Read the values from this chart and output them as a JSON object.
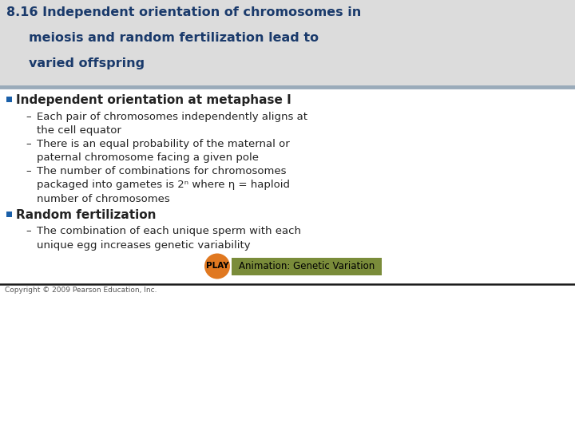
{
  "title_line1": "8.16 Independent orientation of chromosomes in",
  "title_line2": "meiosis and random fertilization lead to",
  "title_line3": "varied offspring",
  "title_color": "#1a3a6b",
  "title_bg_color": "#dcdcdc",
  "separator_color": "#9aabba",
  "bg_color": "#ffffff",
  "bullet_color": "#1a5fa8",
  "bullet1_text": "Independent orientation at metaphase I",
  "sub_bullets1": [
    "Each pair of chromosomes independently aligns at\nthe cell equator",
    "There is an equal probability of the maternal or\npaternal chromosome facing a given pole",
    "The number of combinations for chromosomes\npackaged into gametes is 2ⁿ where η = haploid\nnumber of chromosomes"
  ],
  "bullet2_text": "Random fertilization",
  "sub_bullets2": [
    "The combination of each unique sperm with each\nunique egg increases genetic variability"
  ],
  "play_circle_color": "#e07820",
  "play_text": "PLAY",
  "animation_box_color": "#7a8c3a",
  "animation_text": "Animation: Genetic Variation",
  "copyright_text": "Copyright © 2009 Pearson Education, Inc.",
  "bottom_line_color": "#1a1a1a",
  "text_color": "#222222",
  "sub_bullet_prefix": "–",
  "title_font_size": 11.5,
  "bullet1_font_size": 11.0,
  "sub_font_size": 9.5,
  "bullet2_font_size": 11.0
}
